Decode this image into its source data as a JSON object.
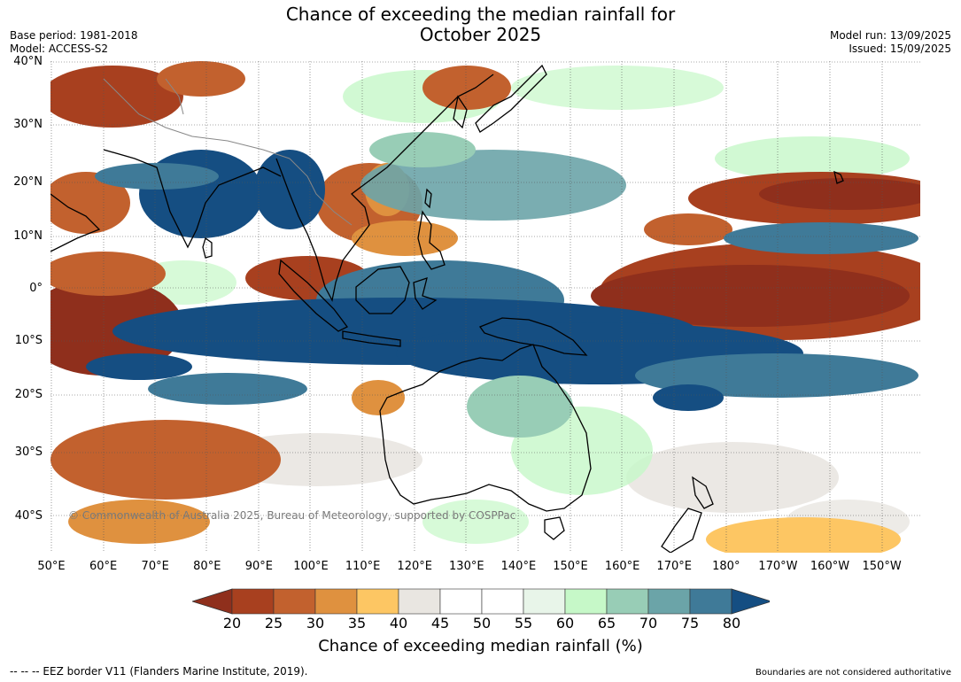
{
  "title_line1": "Chance of exceeding the median rainfall for",
  "title_line2": "October 2025",
  "meta_left": {
    "base_period": "Base period: 1981-2018",
    "model": "Model: ACCESS-S2"
  },
  "meta_right": {
    "model_run": "Model run: 13/09/2025",
    "issued": "Issued: 15/09/2025"
  },
  "lat_labels": [
    "40°N",
    "30°N",
    "20°N",
    "10°N",
    "0°",
    "10°S",
    "20°S",
    "30°S",
    "40°S"
  ],
  "lon_labels": [
    "50°E",
    "60°E",
    "70°E",
    "80°E",
    "90°E",
    "100°E",
    "110°E",
    "120°E",
    "130°E",
    "140°E",
    "150°E",
    "160°E",
    "170°E",
    "180°",
    "170°W",
    "160°W",
    "150°W"
  ],
  "credit": "© Commonwealth of Australia 2025, Bureau of Meteorology, supported by COSPPac",
  "colorbar": {
    "ticks": [
      "20",
      "25",
      "30",
      "35",
      "40",
      "45",
      "50",
      "55",
      "60",
      "65",
      "70",
      "75",
      "80"
    ],
    "colors": [
      "#8f2f1c",
      "#a8401f",
      "#c2612e",
      "#df913f",
      "#fdc663",
      "#e9e6e1",
      "#ffffff",
      "#ffffff",
      "#e8f5e9",
      "#c6f8c8",
      "#98cdb6",
      "#6ba4a8",
      "#3f7a98",
      "#154e82"
    ],
    "label": "Chance of exceeding median rainfall (%)"
  },
  "footer_left": "--  --  -- EEZ border V11 (Flanders Marine Institute, 2019).",
  "footer_right": "Boundaries are not considered authoritative"
}
